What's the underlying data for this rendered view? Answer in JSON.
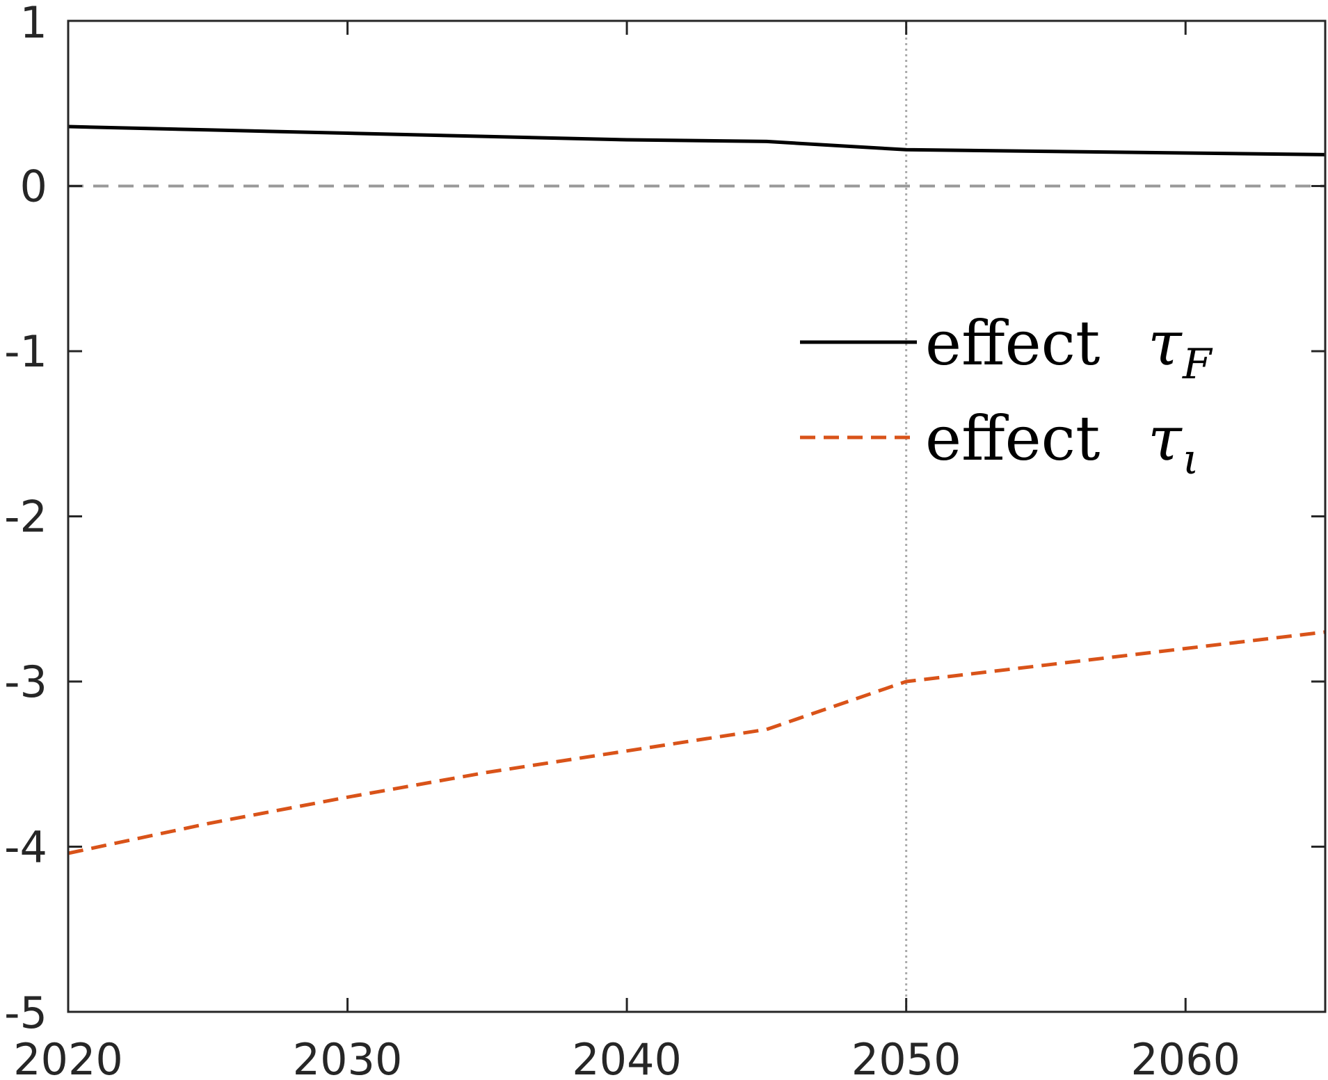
{
  "chart_data": {
    "type": "line",
    "title": "",
    "xlabel": "",
    "ylabel": "",
    "xlim": [
      2020,
      2065
    ],
    "ylim": [
      -5,
      1
    ],
    "xticks": [
      2020,
      2030,
      2040,
      2050,
      2060
    ],
    "yticks": [
      1,
      0,
      -1,
      -2,
      -3,
      -4,
      -5
    ],
    "grid": false,
    "legend_position": "center-right",
    "reference_lines": [
      {
        "orientation": "horizontal",
        "value": 0,
        "style": "dashed",
        "color": "#999999"
      },
      {
        "orientation": "vertical",
        "value": 2050,
        "style": "dotted",
        "color": "#aaaaaa"
      }
    ],
    "series": [
      {
        "name": "effect",
        "name_symbol": "τ",
        "name_subscript": "F",
        "color": "#000000",
        "style": "solid",
        "x": [
          2020,
          2025,
          2030,
          2035,
          2040,
          2045,
          2050,
          2055,
          2060,
          2065
        ],
        "y": [
          0.36,
          0.34,
          0.32,
          0.3,
          0.28,
          0.27,
          0.22,
          0.21,
          0.2,
          0.19
        ]
      },
      {
        "name": "effect",
        "name_symbol": "τ",
        "name_subscript": "ι",
        "color": "#D95319",
        "style": "dashed",
        "x": [
          2020,
          2025,
          2030,
          2035,
          2040,
          2045,
          2050,
          2055,
          2060,
          2065
        ],
        "y": [
          -4.04,
          -3.86,
          -3.7,
          -3.55,
          -3.42,
          -3.29,
          -3.0,
          -2.9,
          -2.8,
          -2.7
        ]
      }
    ]
  }
}
